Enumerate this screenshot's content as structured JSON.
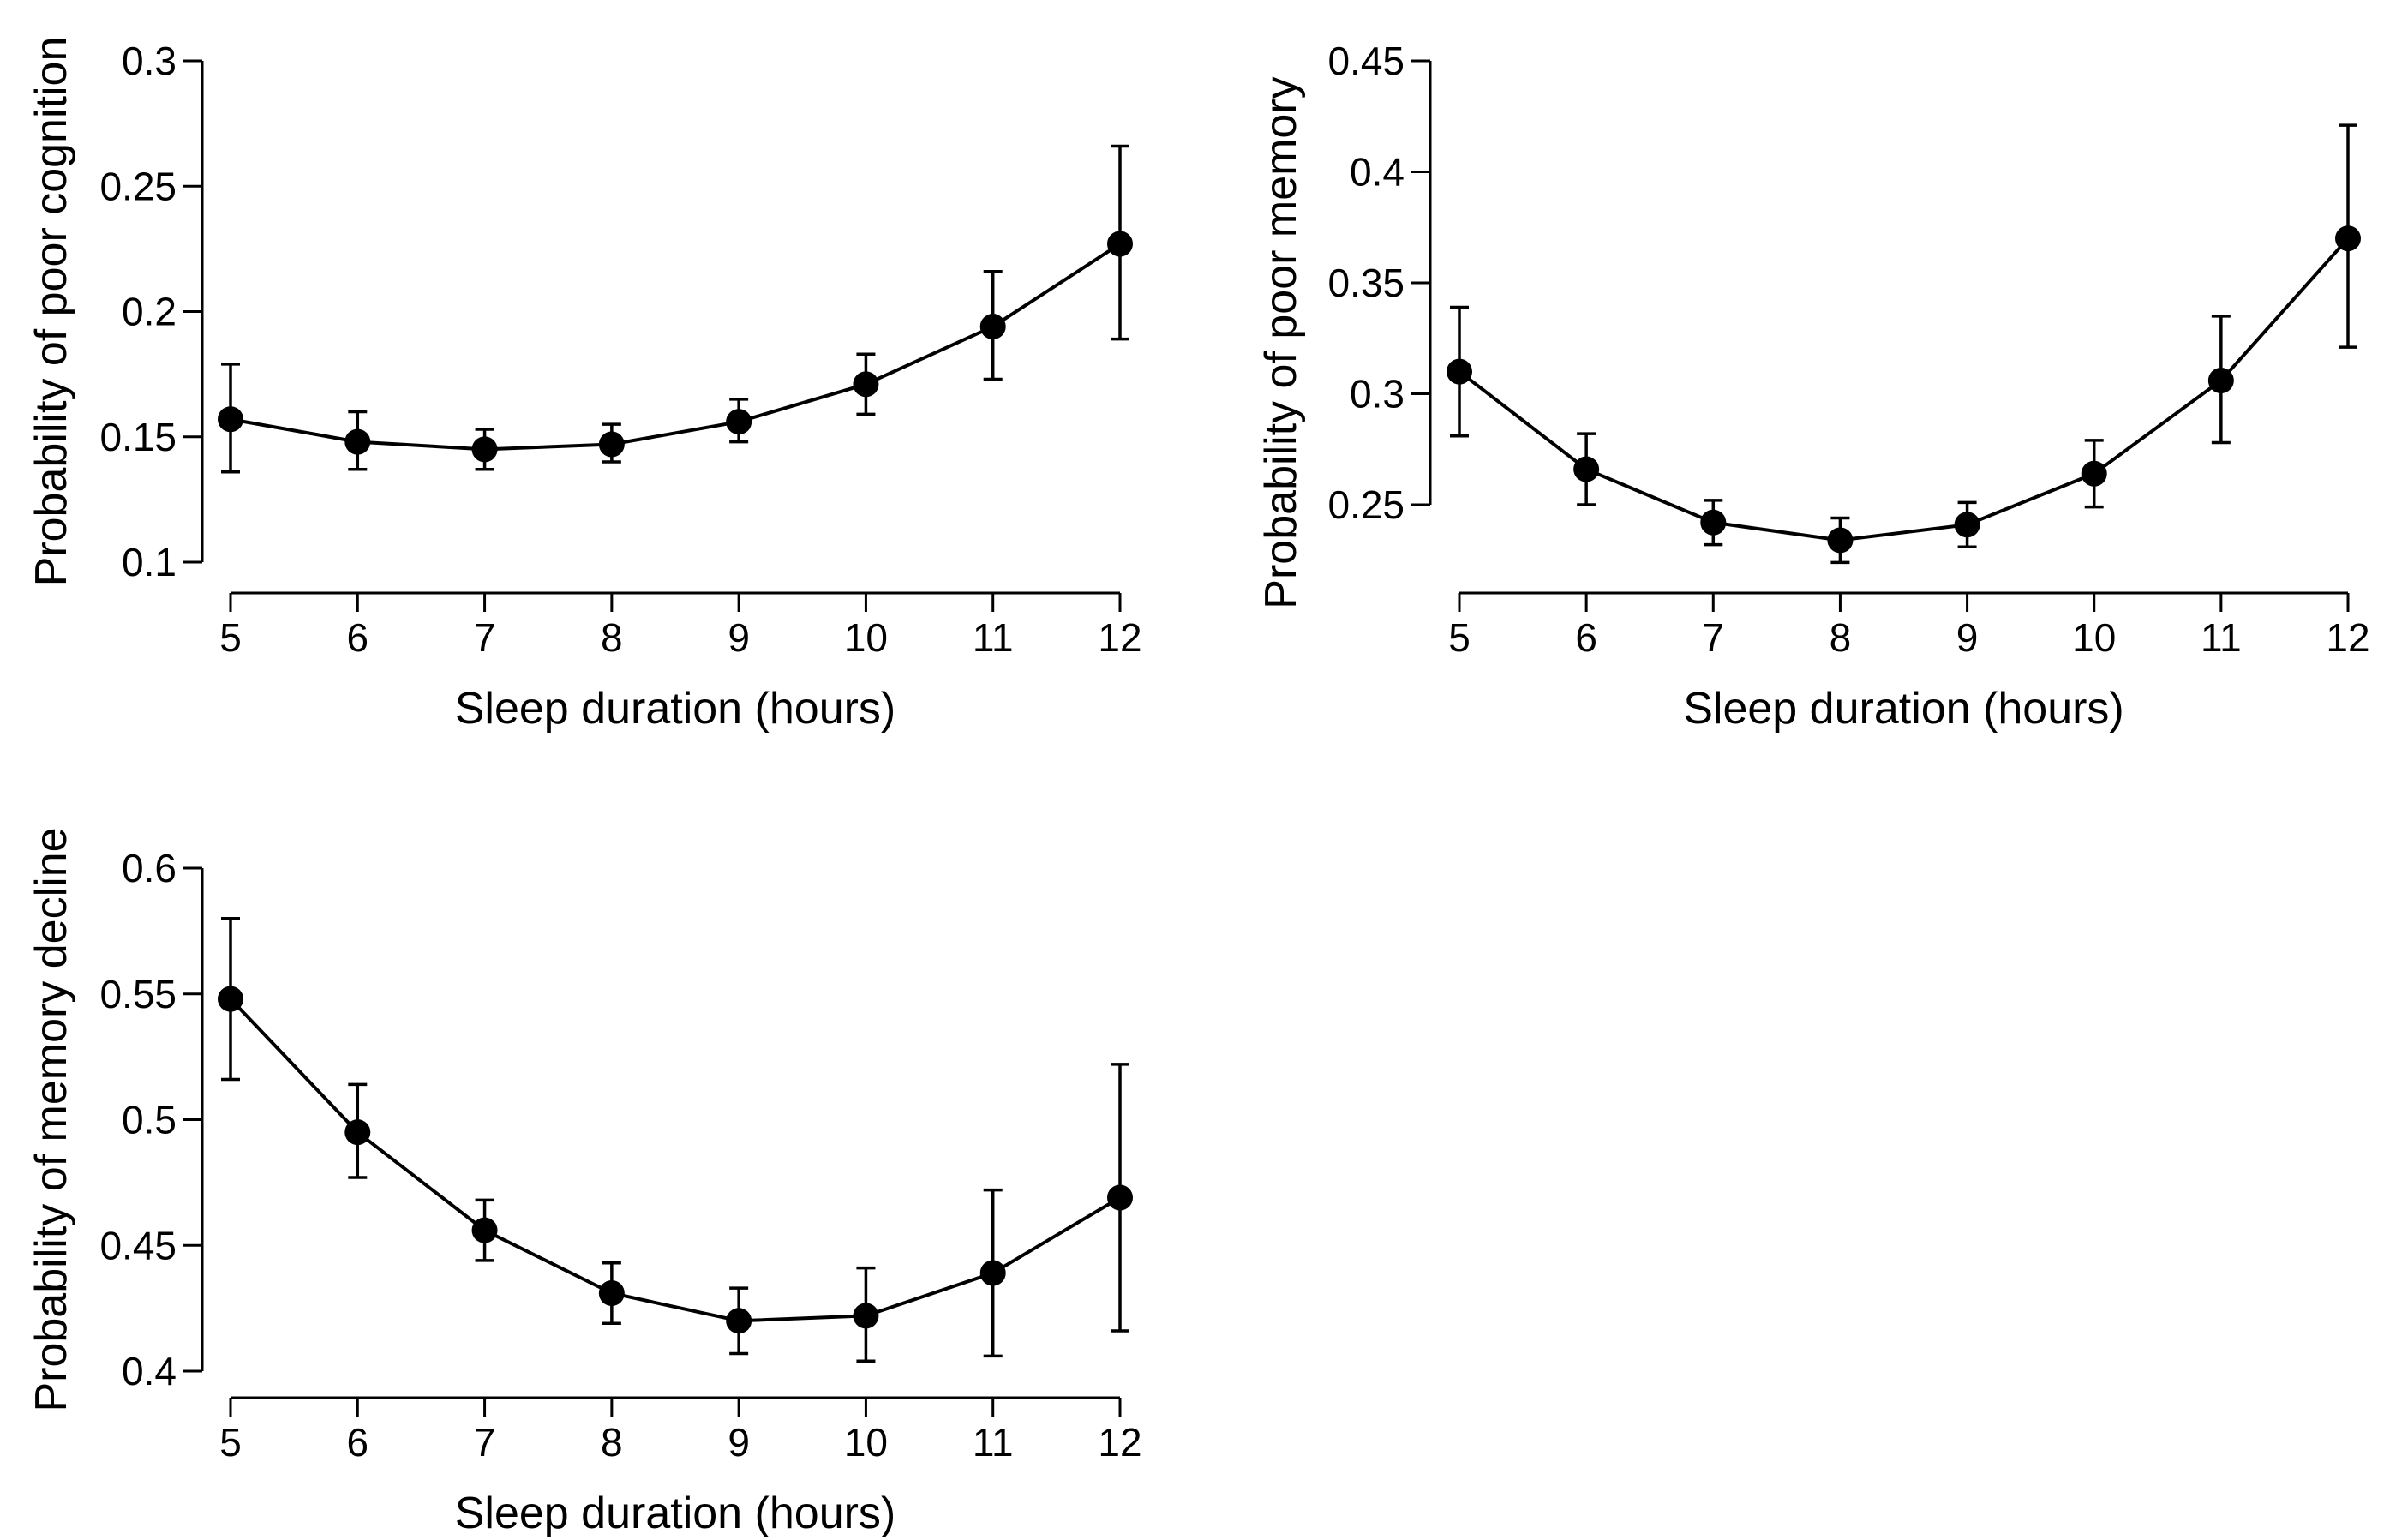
{
  "chart_data": [
    {
      "type": "line",
      "title": "",
      "xlabel": "Sleep duration (hours)",
      "ylabel": "Probability of poor cognition",
      "x": [
        5,
        6,
        7,
        8,
        9,
        10,
        11,
        12
      ],
      "xticks": [
        "5",
        "6",
        "7",
        "8",
        "9",
        "10",
        "11",
        "12"
      ],
      "xlim": [
        5,
        12
      ],
      "ylim": [
        0.1,
        0.3
      ],
      "yticks": [
        0.1,
        0.15,
        0.2,
        0.25,
        0.3
      ],
      "ytick_labels": [
        "0.1",
        "0.15",
        "0.2",
        "0.25",
        "0.3"
      ],
      "series": [
        {
          "name": "Probability of poor cognition",
          "values": [
            0.157,
            0.148,
            0.145,
            0.147,
            0.156,
            0.171,
            0.194,
            0.227
          ],
          "lower": [
            0.136,
            0.137,
            0.137,
            0.14,
            0.148,
            0.159,
            0.173,
            0.189
          ],
          "upper": [
            0.179,
            0.16,
            0.153,
            0.155,
            0.165,
            0.183,
            0.216,
            0.266
          ]
        }
      ]
    },
    {
      "type": "line",
      "title": "",
      "xlabel": "Sleep duration (hours)",
      "ylabel": "Probability of poor memory",
      "x": [
        5,
        6,
        7,
        8,
        9,
        10,
        11,
        12
      ],
      "xticks": [
        "5",
        "6",
        "7",
        "8",
        "9",
        "10",
        "11",
        "12"
      ],
      "xlim": [
        5,
        12
      ],
      "ylim": [
        0.25,
        0.45
      ],
      "yticks": [
        0.25,
        0.3,
        0.35,
        0.4,
        0.45
      ],
      "ytick_labels": [
        "0.25",
        "0.3",
        "0.35",
        "0.4",
        "0.45"
      ],
      "series": [
        {
          "name": "Probability of poor memory",
          "values": [
            0.31,
            0.266,
            0.242,
            0.234,
            0.241,
            0.264,
            0.306,
            0.37
          ],
          "lower": [
            0.281,
            0.25,
            0.232,
            0.224,
            0.231,
            0.249,
            0.278,
            0.321
          ],
          "upper": [
            0.339,
            0.282,
            0.252,
            0.244,
            0.251,
            0.279,
            0.335,
            0.421
          ]
        }
      ]
    },
    {
      "type": "line",
      "title": "",
      "xlabel": "Sleep duration (hours)",
      "ylabel": "Probability of memory decline",
      "x": [
        5,
        6,
        7,
        8,
        9,
        10,
        11,
        12
      ],
      "xticks": [
        "5",
        "6",
        "7",
        "8",
        "9",
        "10",
        "11",
        "12"
      ],
      "xlim": [
        5,
        12
      ],
      "ylim": [
        0.4,
        0.6
      ],
      "yticks": [
        0.4,
        0.45,
        0.5,
        0.55,
        0.6
      ],
      "ytick_labels": [
        "0.4",
        "0.45",
        "0.5",
        "0.55",
        "0.6"
      ],
      "series": [
        {
          "name": "Probability of memory decline",
          "values": [
            0.548,
            0.495,
            0.456,
            0.431,
            0.42,
            0.422,
            0.439,
            0.469
          ],
          "lower": [
            0.516,
            0.477,
            0.444,
            0.419,
            0.407,
            0.404,
            0.406,
            0.416
          ],
          "upper": [
            0.58,
            0.514,
            0.468,
            0.443,
            0.433,
            0.441,
            0.472,
            0.522
          ]
        }
      ]
    }
  ]
}
